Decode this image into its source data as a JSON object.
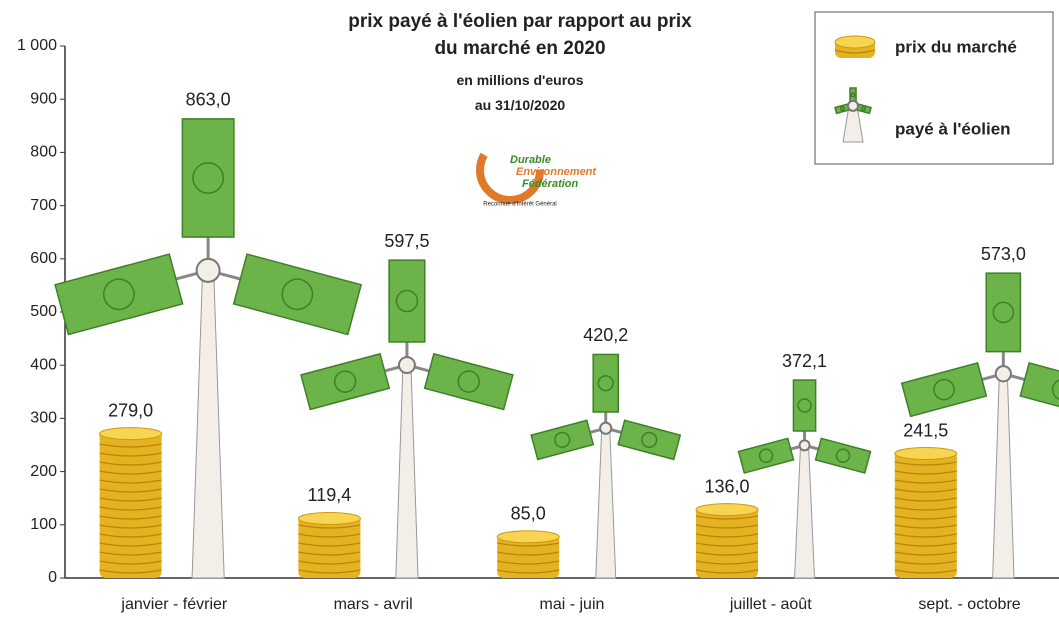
{
  "chart_data": {
    "type": "pictogram-bar",
    "title": "prix payé à l'éolien par rapport au prix du marché en 2020",
    "subtitle": [
      "en millions d'euros",
      "au 31/10/2020"
    ],
    "logo": {
      "lines": [
        "Durable",
        "Environnement",
        "Fédération"
      ],
      "tagline": "Reconnue d'Intérêt Général"
    },
    "categories": [
      "janvier - février",
      "mars - avril",
      "mai - juin",
      "juillet - août",
      "sept. - octobre"
    ],
    "series": [
      {
        "name": "prix du marché",
        "icon": "coins",
        "color": "#e5b321",
        "values": [
          279.0,
          119.4,
          85.0,
          136.0,
          241.5
        ],
        "value_labels": [
          "279,0",
          "119,4",
          "85,0",
          "136,0",
          "241,5"
        ]
      },
      {
        "name": "payé à l'éolien",
        "icon": "turbine",
        "color": "#6cb44a",
        "values": [
          863.0,
          597.5,
          420.2,
          372.1,
          573.0
        ],
        "value_labels": [
          "863,0",
          "597,5",
          "420,2",
          "372,1",
          "573,0"
        ]
      }
    ],
    "ylim": [
      0,
      1000
    ],
    "yticks": [
      0,
      100,
      200,
      300,
      400,
      500,
      600,
      700,
      800,
      900,
      {
        "value": 1000,
        "label": "1 000"
      }
    ],
    "legend": "top-right",
    "grid": false
  }
}
